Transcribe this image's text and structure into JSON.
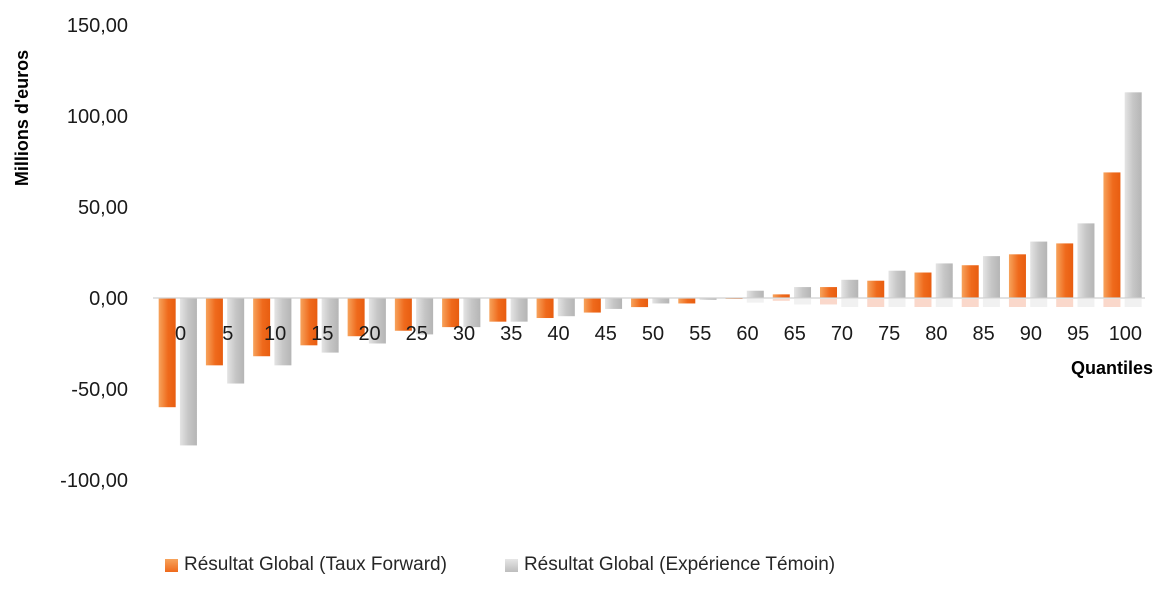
{
  "chart_data": {
    "type": "bar",
    "xlabel": "Quantiles",
    "ylabel": "Millions d'euros",
    "ylim": [
      -100,
      150
    ],
    "yticks": [
      "-100,00",
      "-50,00",
      "0,00",
      "50,00",
      "100,00",
      "150,00"
    ],
    "ytick_values": [
      -100,
      -50,
      0,
      50,
      100,
      150
    ],
    "categories": [
      "0",
      "5",
      "10",
      "15",
      "20",
      "25",
      "30",
      "35",
      "40",
      "45",
      "50",
      "55",
      "60",
      "65",
      "70",
      "75",
      "80",
      "85",
      "90",
      "95",
      "100"
    ],
    "series": [
      {
        "name": "Résultat Global (Taux Forward)",
        "color": "#f07020",
        "values": [
          -60,
          -37,
          -32,
          -26,
          -21,
          -18,
          -16,
          -13,
          -11,
          -8,
          -5,
          -3,
          -0.5,
          2,
          6,
          9.5,
          14,
          18,
          24,
          30,
          69
        ]
      },
      {
        "name": "Résultat Global (Expérience Témoin)",
        "color": "#c4c4c4",
        "values": [
          -81,
          -47,
          -37,
          -30,
          -25,
          -20,
          -16,
          -13,
          -10,
          -6,
          -3,
          -1,
          4,
          6,
          10,
          15,
          19,
          23,
          31,
          41,
          113
        ]
      }
    ],
    "legend_position": "bottom",
    "grid": false
  }
}
